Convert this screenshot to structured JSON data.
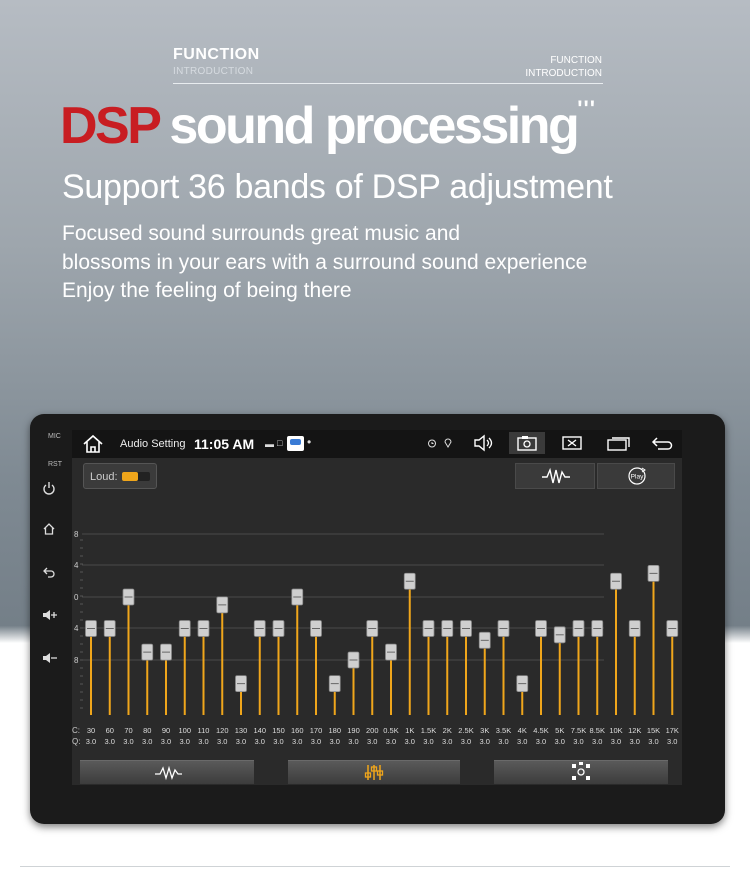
{
  "header": {
    "function_label": "FUNCTION",
    "introduction_label": "INTRODUCTION",
    "right_function": "FUNCTION",
    "right_introduction": "INTRODUCTION"
  },
  "headline": {
    "red": "DSP",
    "white": "sound processing",
    "ticks": "'''"
  },
  "subhead": "Support 36 bands of DSP adjustment",
  "description": [
    "Focused sound surrounds great music and",
    "blossoms in your ears with a surround sound experience",
    "Enjoy the feeling of being there"
  ],
  "device": {
    "side_labels": {
      "mic": "MIC",
      "rst": "RST"
    },
    "side_icons": [
      "power-icon",
      "home-icon",
      "back-icon",
      "volume-up-icon",
      "volume-down-icon"
    ]
  },
  "status_bar": {
    "title": "Audio Setting",
    "time": "11:05 AM",
    "icons": [
      "home-icon",
      "alarm-icon",
      "location-icon",
      "volume-icon",
      "screenshot-icon",
      "close-icon",
      "recent-apps-icon",
      "back-icon"
    ]
  },
  "loud": {
    "label": "Loud:",
    "on": true
  },
  "accent_color": "#f0a61b",
  "top_buttons": [
    "waveform-icon",
    "play-icon"
  ],
  "bottom_buttons": [
    "waveform-icon",
    "equalizer-icon",
    "surround-icon"
  ],
  "chart_data": {
    "type": "bar",
    "y_ticks": [
      "8",
      "4",
      "0",
      "4",
      "8"
    ],
    "ylim": [
      -12,
      8
    ],
    "row_labels": {
      "freq": "C:",
      "q": "Q:"
    },
    "categories": [
      "30",
      "60",
      "70",
      "80",
      "90",
      "100",
      "110",
      "120",
      "130",
      "140",
      "150",
      "160",
      "170",
      "180",
      "190",
      "200",
      "0.5K",
      "1K",
      "1.5K",
      "2K",
      "2.5K",
      "3K",
      "3.5K",
      "4K",
      "4.5K",
      "5K",
      "7.5K",
      "8.5K",
      "10K",
      "12K",
      "15K",
      "17K"
    ],
    "q_values": [
      "3.0",
      "3.0",
      "3.0",
      "3.0",
      "3.0",
      "3.0",
      "3.0",
      "3.0",
      "3.0",
      "3.0",
      "3.0",
      "3.0",
      "3.0",
      "3.0",
      "3.0",
      "3.0",
      "3.0",
      "3.0",
      "3.0",
      "3.0",
      "3.0",
      "3.0",
      "3.0",
      "3.0",
      "3.0",
      "3.0",
      "3.0",
      "3.0",
      "3.0",
      "3.0",
      "3.0",
      "3.0"
    ],
    "values": [
      -4,
      -4,
      0,
      -7,
      -7,
      -4,
      -4,
      -1,
      -11,
      -4,
      -4,
      0,
      -4,
      -11,
      -8,
      -4,
      -7,
      2,
      -4,
      -4,
      -4,
      -5.5,
      -4,
      -11,
      -4,
      -4.8,
      -4,
      -4,
      2,
      -4,
      3,
      -4
    ]
  }
}
